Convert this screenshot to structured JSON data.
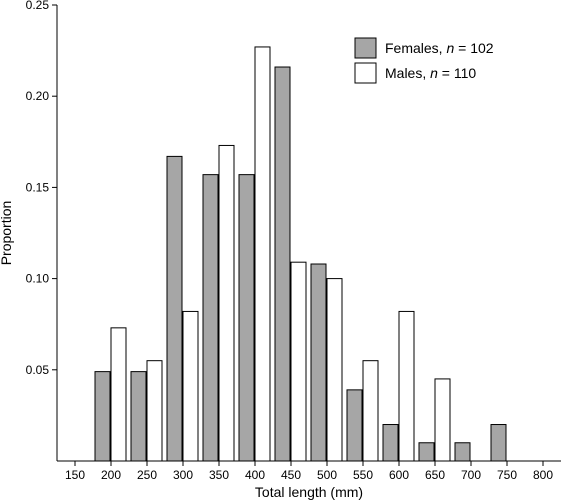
{
  "chart_data": {
    "type": "bar",
    "xlabel": "Total length (mm)",
    "ylabel": "Proportion",
    "xlim": [
      125,
      825
    ],
    "ylim": [
      0,
      0.25
    ],
    "xticks": [
      150,
      200,
      250,
      300,
      350,
      400,
      450,
      500,
      550,
      600,
      650,
      700,
      750,
      800
    ],
    "yticks": [
      0.05,
      0.1,
      0.15,
      0.2,
      0.25
    ],
    "ytick_labels": [
      "0.05",
      "0.10",
      "0.15",
      "0.20",
      "0.25"
    ],
    "grid": false,
    "legend_position": "top-right",
    "categories": [
      200,
      250,
      300,
      350,
      400,
      450,
      500,
      550,
      600,
      650,
      700,
      750
    ],
    "series": [
      {
        "name_prefix": "Females, ",
        "name_italic": "n",
        "name_suffix": " = 102",
        "color": "#a6a6a6",
        "values": [
          0.049,
          0.049,
          0.167,
          0.157,
          0.157,
          0.216,
          0.108,
          0.039,
          0.02,
          0.01,
          0.01,
          0.02
        ]
      },
      {
        "name_prefix": "Males, ",
        "name_italic": "n",
        "name_suffix": " = 110",
        "color": "#ffffff",
        "values": [
          0.073,
          0.055,
          0.082,
          0.173,
          0.227,
          0.109,
          0.1,
          0.055,
          0.082,
          0.045,
          0,
          0
        ]
      }
    ]
  }
}
